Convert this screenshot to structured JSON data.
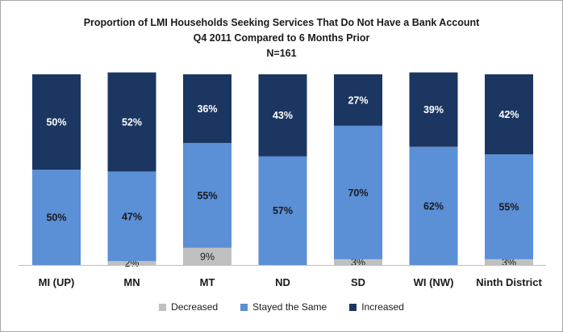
{
  "chart_data": {
    "type": "bar",
    "stacked": true,
    "title": "Proportion of LMI Households Seeking Services That Do Not Have a Bank Account",
    "subtitle": "Q4 2011 Compared to 6 Months Prior",
    "note": "N=161",
    "categories": [
      "MI (UP)",
      "MN",
      "MT",
      "ND",
      "SD",
      "WI (NW)",
      "Ninth District"
    ],
    "ylim": [
      0,
      100
    ],
    "grid": false,
    "legend_position": "bottom",
    "series": [
      {
        "name": "Decreased",
        "values": [
          0,
          2,
          9,
          0,
          3,
          0,
          3
        ],
        "labels": [
          "",
          "2%",
          "9%",
          "",
          "3%",
          "",
          "3%"
        ],
        "color": "#c0c0c0"
      },
      {
        "name": "Stayed the Same",
        "values": [
          50,
          47,
          55,
          57,
          70,
          62,
          55
        ],
        "labels": [
          "50%",
          "47%",
          "55%",
          "57%",
          "70%",
          "62%",
          "55%"
        ],
        "color": "#5b8fd6"
      },
      {
        "name": "Increased",
        "values": [
          50,
          52,
          36,
          43,
          27,
          39,
          42
        ],
        "labels": [
          "50%",
          "52%",
          "36%",
          "43%",
          "27%",
          "39%",
          "42%"
        ],
        "color": "#1b3660"
      }
    ]
  }
}
